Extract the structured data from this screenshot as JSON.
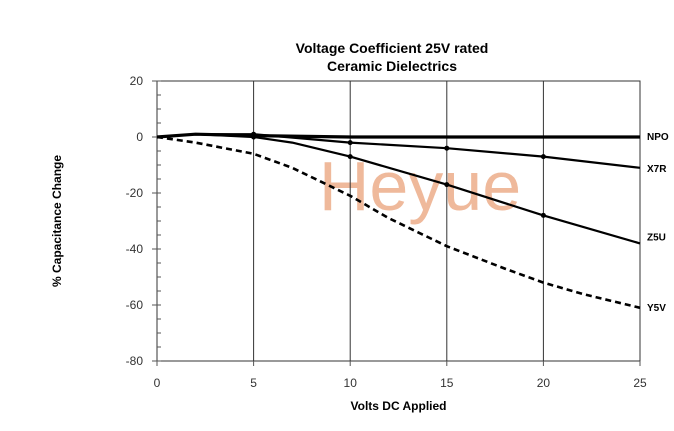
{
  "chart_data": {
    "type": "line",
    "title": [
      "Voltage Coefficient 25V rated",
      "Ceramic Dielectrics"
    ],
    "xlabel": "Volts DC Applied",
    "ylabel": "% Capacitance Change",
    "xlim": [
      0,
      25
    ],
    "ylim": [
      -80,
      20
    ],
    "x_ticks": [
      0,
      5,
      10,
      15,
      20,
      25
    ],
    "y_ticks": [
      20,
      0,
      -20,
      -40,
      -60,
      -80
    ],
    "grid": "vertical",
    "watermark": "Heyue",
    "series": [
      {
        "name": "NPO",
        "style": "solid",
        "color": "#000000",
        "x": [
          0,
          2,
          5,
          10,
          15,
          20,
          25
        ],
        "y": [
          0,
          1,
          0.5,
          0,
          0,
          0,
          0
        ]
      },
      {
        "name": "X7R",
        "style": "solid",
        "color": "#000000",
        "x": [
          0,
          2,
          5,
          10,
          15,
          20,
          25
        ],
        "y": [
          0,
          1,
          1,
          -2,
          -4,
          -7,
          -11
        ]
      },
      {
        "name": "Z5U",
        "style": "solid",
        "color": "#000000",
        "x": [
          0,
          2,
          5,
          7,
          10,
          15,
          20,
          25
        ],
        "y": [
          0,
          1,
          0,
          -2,
          -7,
          -17,
          -28,
          -38
        ]
      },
      {
        "name": "Y5V",
        "style": "dashed",
        "color": "#000000",
        "x": [
          0,
          2,
          5,
          7,
          10,
          12,
          15,
          18,
          20,
          22,
          25
        ],
        "y": [
          0,
          -2,
          -6,
          -11,
          -21,
          -29,
          -39,
          -47,
          -52,
          -56,
          -61
        ]
      }
    ]
  }
}
